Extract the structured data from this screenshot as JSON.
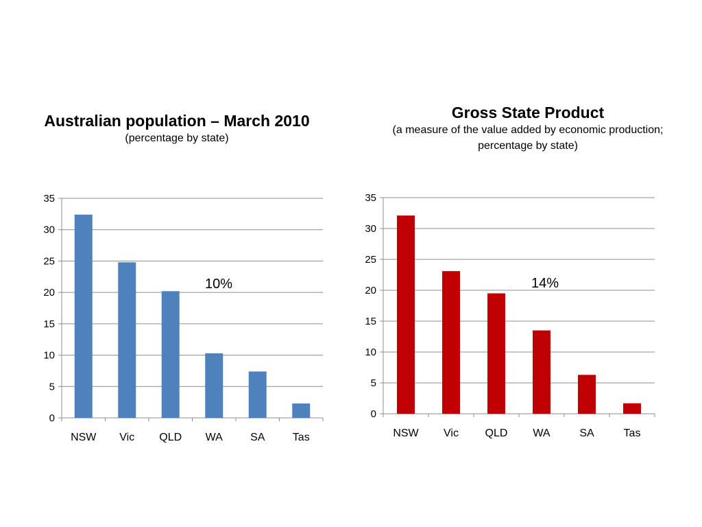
{
  "chart_data": [
    {
      "type": "bar",
      "title": "Australian population – March 2010",
      "subtitle": "(percentage by state)",
      "categories": [
        "NSW",
        "Vic",
        "QLD",
        "WA",
        "SA",
        "Tas"
      ],
      "values": [
        32.4,
        24.8,
        20.2,
        10.3,
        7.4,
        2.3
      ],
      "ylim": [
        0,
        35
      ],
      "yticks": [
        "0",
        "5",
        "10",
        "15",
        "20",
        "25",
        "30",
        "35"
      ],
      "xlabel": "",
      "ylabel": "",
      "annotation": "10%",
      "bar_color": "#4f81bd",
      "grid": true,
      "legend": "none"
    },
    {
      "type": "bar",
      "title": "Gross State Product",
      "subtitle_line1": "(a measure of the value added by economic production;",
      "subtitle_line2": "percentage by state)",
      "categories": [
        "NSW",
        "Vic",
        "QLD",
        "WA",
        "SA",
        "Tas"
      ],
      "values": [
        32.1,
        23.1,
        19.5,
        13.5,
        6.3,
        1.7
      ],
      "ylim": [
        0,
        35
      ],
      "yticks": [
        "0",
        "5",
        "10",
        "15",
        "20",
        "25",
        "30",
        "35"
      ],
      "xlabel": "",
      "ylabel": "",
      "annotation": "14%",
      "bar_color": "#c00000",
      "grid": true,
      "legend": "none"
    }
  ]
}
